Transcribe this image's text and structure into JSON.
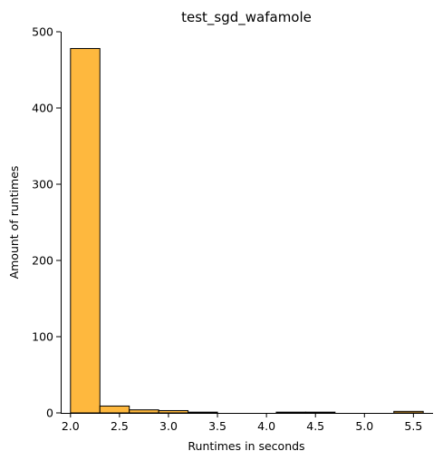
{
  "chart_data": {
    "type": "bar",
    "title": "test_sgd_wafamole",
    "xlabel": "Runtimes in seconds",
    "ylabel": "Amount of runtimes",
    "xlim": [
      1.9,
      5.7
    ],
    "ylim": [
      0,
      500
    ],
    "x_ticks": [
      "2.0",
      "2.5",
      "3.0",
      "3.5",
      "4.0",
      "4.5",
      "5.0",
      "5.5"
    ],
    "x_tick_values": [
      2.0,
      2.5,
      3.0,
      3.5,
      4.0,
      4.5,
      5.0,
      5.5
    ],
    "y_ticks": [
      "0",
      "100",
      "200",
      "300",
      "400",
      "500"
    ],
    "y_tick_values": [
      0,
      100,
      200,
      300,
      400,
      500
    ],
    "bin_edges": [
      2.0,
      2.3,
      2.6,
      2.9,
      3.2,
      3.5,
      3.8,
      4.1,
      4.4,
      4.7,
      5.0,
      5.3,
      5.6
    ],
    "values": [
      478,
      9,
      4,
      3,
      1,
      0,
      0,
      1,
      1,
      0,
      0,
      2
    ],
    "bar_color": "#feb83e",
    "edge_color": "#000000",
    "grid": false,
    "legend": "none"
  }
}
